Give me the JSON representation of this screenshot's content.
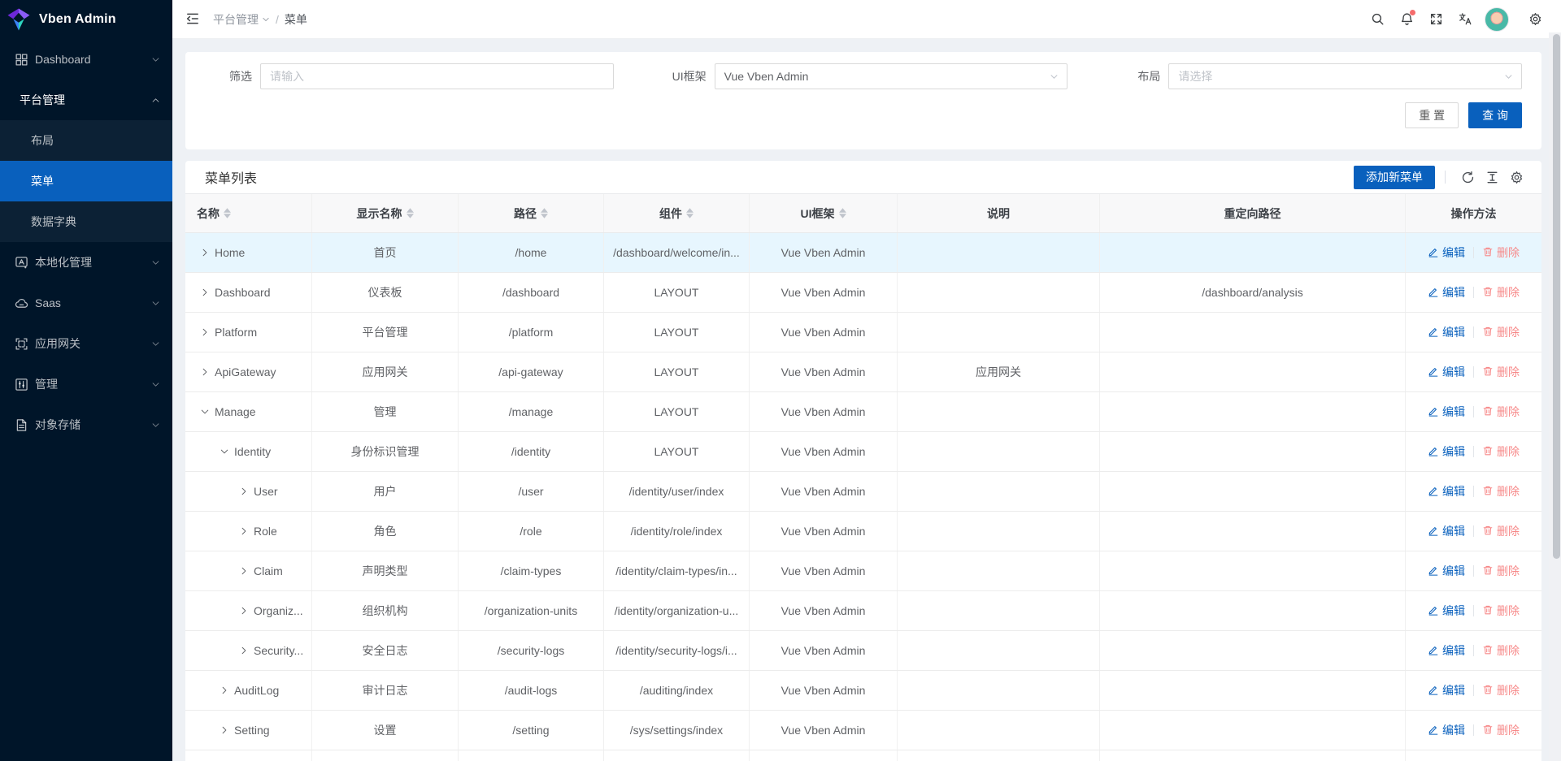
{
  "colors": {
    "primary": "#0960bd",
    "sidebar_bg": "#001529",
    "submenu_bg": "#0c2135",
    "page_bg": "#eef1f5",
    "selected_row": "#e7f6fe",
    "delete": "#f78989",
    "badge": "#f56c6c",
    "avatar_bg": "#49b9a7"
  },
  "sidebar": {
    "logo_text": "Vben Admin",
    "items": [
      {
        "id": "dashboard",
        "label": "Dashboard",
        "icon": "dashboard",
        "chevron": "down",
        "type": "top"
      },
      {
        "id": "platform-management",
        "label": "平台管理",
        "chevron": "up",
        "type": "group",
        "active": true
      },
      {
        "id": "layout",
        "label": "布局",
        "type": "sub"
      },
      {
        "id": "menu",
        "label": "菜单",
        "type": "sub",
        "selected": true
      },
      {
        "id": "data-dictionary",
        "label": "数据字典",
        "type": "sub"
      },
      {
        "id": "localization",
        "label": "本地化管理",
        "icon": "localization",
        "chevron": "down",
        "type": "top"
      },
      {
        "id": "saas",
        "label": "Saas",
        "icon": "cloud",
        "chevron": "down",
        "type": "top"
      },
      {
        "id": "app-gateway",
        "label": "应用网关",
        "icon": "gateway",
        "chevron": "down",
        "type": "top"
      },
      {
        "id": "manage",
        "label": "管理",
        "icon": "manage",
        "chevron": "down",
        "type": "top"
      },
      {
        "id": "object-storage",
        "label": "对象存储",
        "icon": "storage",
        "chevron": "down",
        "type": "top"
      }
    ]
  },
  "header": {
    "breadcrumb_section": "平台管理",
    "breadcrumb_separator": "/",
    "breadcrumb_page": "菜单",
    "icons": [
      "search-icon",
      "notification-bell-icon",
      "fullscreen-icon",
      "translate-icon",
      "user-avatar",
      "settings-gear-icon"
    ]
  },
  "filter": {
    "keyword": {
      "label": "筛选",
      "placeholder": "请输入"
    },
    "framework": {
      "label": "UI框架",
      "value": "Vue Vben Admin"
    },
    "layout": {
      "label": "布局",
      "placeholder": "请选择"
    },
    "reset_label": "重 置",
    "search_label": "查 询"
  },
  "table": {
    "title": "菜单列表",
    "add_button": "添加新菜单",
    "edit_label": "编辑",
    "delete_label": "删除",
    "columns": [
      {
        "label": "名称",
        "sortable": true,
        "align": "left"
      },
      {
        "label": "显示名称",
        "sortable": true
      },
      {
        "label": "路径",
        "sortable": true
      },
      {
        "label": "组件",
        "sortable": true
      },
      {
        "label": "UI框架",
        "sortable": true
      },
      {
        "label": "说明",
        "sortable": false
      },
      {
        "label": "重定向路径",
        "sortable": false
      },
      {
        "label": "操作方法",
        "sortable": false
      }
    ],
    "rows": [
      {
        "indent": 0,
        "expand": "right",
        "name": "Home",
        "display": "首页",
        "path": "/home",
        "component": "/dashboard/welcome/in...",
        "framework": "Vue Vben Admin",
        "note": "",
        "redirect": "",
        "selected": true
      },
      {
        "indent": 0,
        "expand": "right",
        "name": "Dashboard",
        "display": "仪表板",
        "path": "/dashboard",
        "component": "LAYOUT",
        "framework": "Vue Vben Admin",
        "note": "",
        "redirect": "/dashboard/analysis"
      },
      {
        "indent": 0,
        "expand": "right",
        "name": "Platform",
        "display": "平台管理",
        "path": "/platform",
        "component": "LAYOUT",
        "framework": "Vue Vben Admin",
        "note": "",
        "redirect": ""
      },
      {
        "indent": 0,
        "expand": "right",
        "name": "ApiGateway",
        "display": "应用网关",
        "path": "/api-gateway",
        "component": "LAYOUT",
        "framework": "Vue Vben Admin",
        "note": "应用网关",
        "redirect": ""
      },
      {
        "indent": 0,
        "expand": "down",
        "name": "Manage",
        "display": "管理",
        "path": "/manage",
        "component": "LAYOUT",
        "framework": "Vue Vben Admin",
        "note": "",
        "redirect": ""
      },
      {
        "indent": 1,
        "expand": "down",
        "name": "Identity",
        "display": "身份标识管理",
        "path": "/identity",
        "component": "LAYOUT",
        "framework": "Vue Vben Admin",
        "note": "",
        "redirect": ""
      },
      {
        "indent": 2,
        "expand": "right",
        "name": "User",
        "display": "用户",
        "path": "/user",
        "component": "/identity/user/index",
        "framework": "Vue Vben Admin",
        "note": "",
        "redirect": ""
      },
      {
        "indent": 2,
        "expand": "right",
        "name": "Role",
        "display": "角色",
        "path": "/role",
        "component": "/identity/role/index",
        "framework": "Vue Vben Admin",
        "note": "",
        "redirect": ""
      },
      {
        "indent": 2,
        "expand": "right",
        "name": "Claim",
        "display": "声明类型",
        "path": "/claim-types",
        "component": "/identity/claim-types/in...",
        "framework": "Vue Vben Admin",
        "note": "",
        "redirect": ""
      },
      {
        "indent": 2,
        "expand": "right",
        "name": "Organiz...",
        "display": "组织机构",
        "path": "/organization-units",
        "component": "/identity/organization-u...",
        "framework": "Vue Vben Admin",
        "note": "",
        "redirect": ""
      },
      {
        "indent": 2,
        "expand": "right",
        "name": "Security...",
        "display": "安全日志",
        "path": "/security-logs",
        "component": "/identity/security-logs/i...",
        "framework": "Vue Vben Admin",
        "note": "",
        "redirect": ""
      },
      {
        "indent": 1,
        "expand": "right",
        "name": "AuditLog",
        "display": "审计日志",
        "path": "/audit-logs",
        "component": "/auditing/index",
        "framework": "Vue Vben Admin",
        "note": "",
        "redirect": ""
      },
      {
        "indent": 1,
        "expand": "right",
        "name": "Setting",
        "display": "设置",
        "path": "/setting",
        "component": "/sys/settings/index",
        "framework": "Vue Vben Admin",
        "note": "",
        "redirect": ""
      },
      {
        "indent": 0,
        "expand": null,
        "name": "",
        "display": "",
        "path": "",
        "component": "",
        "framework": "",
        "note": "",
        "redirect": "",
        "partial": true
      }
    ]
  }
}
